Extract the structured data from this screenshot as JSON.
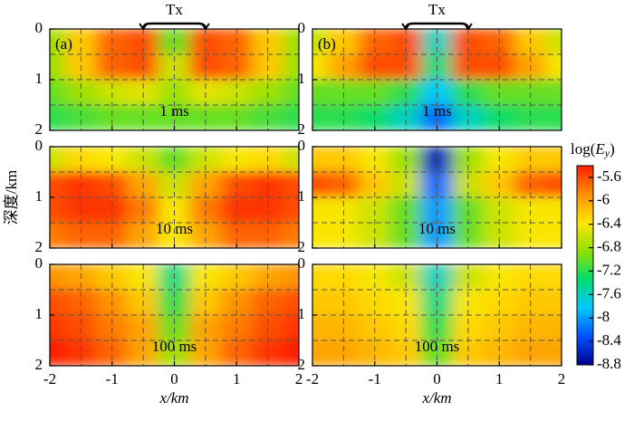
{
  "chart_data": {
    "type": "heatmap",
    "x_label": "x/km",
    "y_label": "深度/km",
    "annotation": {
      "text": "Tx",
      "x": [
        -0.5,
        0.5
      ]
    },
    "x": [
      -2,
      -1.5,
      -1,
      -0.5,
      0,
      0.5,
      1,
      1.5,
      2
    ],
    "y": [
      0.25,
      0.75,
      1.25,
      1.75
    ],
    "xlim": [
      -2,
      2
    ],
    "ylim": [
      2,
      0
    ],
    "xticks": [
      -2,
      -1,
      0,
      1,
      2
    ],
    "yticks": [
      0,
      1,
      2
    ],
    "grid": {
      "x": [
        -1.5,
        -1,
        -0.5,
        0,
        0.5,
        1,
        1.5
      ],
      "y": [
        0.5,
        1,
        1.5
      ]
    },
    "clim": [
      -8.8,
      -5.4
    ],
    "cticks": [
      -5.6,
      -6.0,
      -6.4,
      -6.8,
      -7.2,
      -7.6,
      -8.0,
      -8.4,
      -8.8
    ],
    "colorbar_label": {
      "prefix": "log(",
      "var": "E",
      "sub": "y",
      "suffix": ")"
    },
    "colormap": [
      "#00008f",
      "#0050ff",
      "#00c8ff",
      "#00dc70",
      "#90e000",
      "#ffe600",
      "#ff9000",
      "#ff1e00"
    ],
    "panels": [
      {
        "label": "(a)",
        "time": "1 ms",
        "values": [
          [
            -6.8,
            -6.2,
            -5.7,
            -5.6,
            -7.0,
            -5.6,
            -5.7,
            -6.2,
            -6.8
          ],
          [
            -6.8,
            -6.2,
            -5.7,
            -5.6,
            -6.6,
            -5.6,
            -5.7,
            -6.2,
            -6.8
          ],
          [
            -7.0,
            -6.8,
            -6.6,
            -6.5,
            -6.8,
            -6.5,
            -6.6,
            -6.8,
            -7.0
          ],
          [
            -7.2,
            -7.1,
            -7.0,
            -7.0,
            -7.0,
            -7.0,
            -7.0,
            -7.1,
            -7.2
          ]
        ]
      },
      {
        "label": "(b)",
        "time": "1 ms",
        "values": [
          [
            -6.6,
            -6.2,
            -5.7,
            -5.6,
            -7.6,
            -5.6,
            -5.7,
            -6.2,
            -6.6
          ],
          [
            -6.4,
            -6.0,
            -5.6,
            -5.6,
            -7.4,
            -5.6,
            -5.6,
            -6.0,
            -6.4
          ],
          [
            -7.0,
            -7.0,
            -7.0,
            -7.2,
            -7.8,
            -7.2,
            -7.0,
            -7.0,
            -7.0
          ],
          [
            -7.2,
            -7.2,
            -7.3,
            -7.6,
            -8.2,
            -7.6,
            -7.3,
            -7.2,
            -7.2
          ]
        ]
      },
      {
        "time": "10 ms",
        "values": [
          [
            -6.6,
            -6.3,
            -6.4,
            -6.6,
            -7.0,
            -6.6,
            -6.4,
            -6.3,
            -6.6
          ],
          [
            -5.6,
            -5.5,
            -5.6,
            -6.0,
            -6.6,
            -6.0,
            -5.6,
            -5.5,
            -5.6
          ],
          [
            -5.6,
            -5.5,
            -5.5,
            -5.8,
            -6.4,
            -5.8,
            -5.5,
            -5.5,
            -5.6
          ],
          [
            -5.8,
            -5.7,
            -5.7,
            -6.0,
            -6.4,
            -6.0,
            -5.7,
            -5.7,
            -5.8
          ]
        ]
      },
      {
        "time": "10 ms",
        "values": [
          [
            -6.2,
            -6.2,
            -6.4,
            -6.8,
            -8.6,
            -6.8,
            -6.4,
            -6.2,
            -6.2
          ],
          [
            -5.6,
            -5.7,
            -6.2,
            -6.6,
            -8.2,
            -6.6,
            -6.2,
            -5.7,
            -5.6
          ],
          [
            -6.4,
            -6.4,
            -6.6,
            -7.0,
            -8.0,
            -7.0,
            -6.6,
            -6.4,
            -6.4
          ],
          [
            -6.4,
            -6.4,
            -6.6,
            -7.0,
            -8.0,
            -7.0,
            -6.6,
            -6.4,
            -6.4
          ]
        ]
      },
      {
        "time": "100 ms",
        "values": [
          [
            -5.9,
            -6.0,
            -6.2,
            -6.4,
            -7.4,
            -6.4,
            -6.2,
            -6.0,
            -5.9
          ],
          [
            -5.6,
            -5.7,
            -5.9,
            -6.2,
            -7.2,
            -6.2,
            -5.9,
            -5.7,
            -5.6
          ],
          [
            -5.5,
            -5.6,
            -5.8,
            -6.0,
            -7.0,
            -6.0,
            -5.8,
            -5.6,
            -5.5
          ],
          [
            -5.4,
            -5.5,
            -5.7,
            -6.0,
            -6.8,
            -6.0,
            -5.7,
            -5.5,
            -5.4
          ]
        ]
      },
      {
        "time": "100 ms",
        "values": [
          [
            -6.3,
            -6.3,
            -6.4,
            -6.6,
            -7.6,
            -6.6,
            -6.4,
            -6.3,
            -6.3
          ],
          [
            -6.2,
            -6.2,
            -6.3,
            -6.4,
            -7.4,
            -6.4,
            -6.3,
            -6.2,
            -6.2
          ],
          [
            -6.1,
            -6.1,
            -6.2,
            -6.3,
            -7.2,
            -6.3,
            -6.2,
            -6.1,
            -6.1
          ],
          [
            -6.0,
            -6.0,
            -6.1,
            -6.2,
            -7.0,
            -6.2,
            -6.1,
            -6.0,
            -6.0
          ]
        ]
      }
    ]
  }
}
